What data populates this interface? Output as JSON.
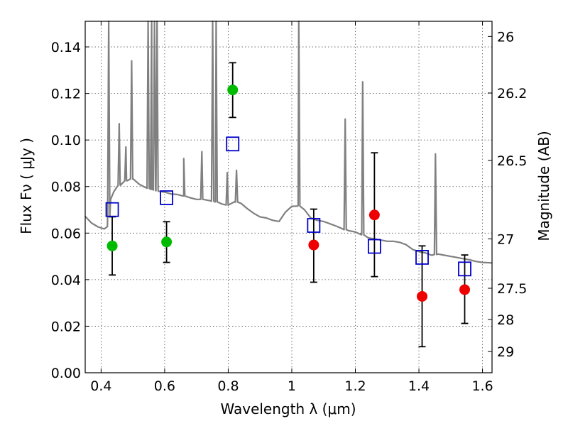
{
  "chart_data": {
    "type": "scatter",
    "title": "",
    "xlabel": "Wavelength  λ (μm)",
    "ylabel": "Flux  Fν  ( μJy )",
    "ylabel_right": "Magnitude (AB)",
    "xlim": [
      0.35,
      1.63
    ],
    "ylim": [
      0.0,
      0.151
    ],
    "grid": true,
    "x_ticks": [
      0.4,
      0.6,
      0.8,
      1.0,
      1.2,
      1.4,
      1.6
    ],
    "x_tick_labels": [
      "0.4",
      "0.6",
      "0.8",
      "1",
      "1.2",
      "1.4",
      "1.6"
    ],
    "y_ticks": [
      0.0,
      0.02,
      0.04,
      0.06,
      0.08,
      0.1,
      0.12,
      0.14
    ],
    "y_tick_labels": [
      "0.00",
      "0.02",
      "0.04",
      "0.06",
      "0.08",
      "0.10",
      "0.12",
      "0.14"
    ],
    "right_ticks": [
      {
        "label": "26",
        "flux": 0.1445
      },
      {
        "label": "26.2",
        "flux": 0.1202
      },
      {
        "label": "26.5",
        "flux": 0.0912
      },
      {
        "label": "27",
        "flux": 0.0575
      },
      {
        "label": "27.5",
        "flux": 0.0363
      },
      {
        "label": "28",
        "flux": 0.0229
      },
      {
        "label": "29",
        "flux": 0.0091
      }
    ],
    "series": [
      {
        "marker": "circle",
        "color": "#00bb00",
        "points": [
          {
            "x": 0.435,
            "y": 0.0545
          },
          {
            "x": 0.606,
            "y": 0.0562
          },
          {
            "x": 0.814,
            "y": 0.1215,
            "yerr": [
              0.1097,
              0.1332
            ]
          }
        ]
      },
      {
        "marker": "circle",
        "color": "#ee0000",
        "points": [
          {
            "x": 1.069,
            "y": 0.0549,
            "yerr": [
              0.0389,
              0.0703
            ]
          },
          {
            "x": 1.26,
            "y": 0.0678,
            "yerr": [
              0.0413,
              0.0945
            ]
          },
          {
            "x": 1.41,
            "y": 0.0328,
            "yerr": [
              0.0112,
              0.0545
            ]
          },
          {
            "x": 1.544,
            "y": 0.0357,
            "yerr": [
              0.0212,
              0.0506
            ]
          }
        ]
      },
      {
        "marker": "square",
        "color": "#0000cc",
        "points": [
          {
            "x": 0.435,
            "y": 0.0701
          },
          {
            "x": 0.606,
            "y": 0.0752
          },
          {
            "x": 0.814,
            "y": 0.0983
          },
          {
            "x": 1.069,
            "y": 0.0633
          },
          {
            "x": 1.26,
            "y": 0.0543
          },
          {
            "x": 1.41,
            "y": 0.0496
          },
          {
            "x": 1.544,
            "y": 0.0446
          }
        ]
      }
    ],
    "error_bars_only": [
      {
        "x": 0.435,
        "yerr": [
          0.042,
          0.067
        ]
      },
      {
        "x": 0.606,
        "yerr": [
          0.0474,
          0.0649
        ]
      }
    ],
    "model_spectrum": {
      "color": "#808080",
      "points": [
        [
          0.35,
          0.0672
        ],
        [
          0.37,
          0.0643
        ],
        [
          0.39,
          0.0627
        ],
        [
          0.41,
          0.0618
        ],
        [
          0.42,
          0.0628
        ],
        [
          0.43,
          0.0745
        ],
        [
          0.44,
          0.0778
        ],
        [
          0.46,
          0.081
        ],
        [
          0.48,
          0.0826
        ],
        [
          0.5,
          0.0834
        ],
        [
          0.52,
          0.081
        ],
        [
          0.54,
          0.0796
        ],
        [
          0.56,
          0.0788
        ],
        [
          0.58,
          0.078
        ],
        [
          0.6,
          0.0776
        ],
        [
          0.62,
          0.0768
        ],
        [
          0.64,
          0.0766
        ],
        [
          0.66,
          0.076
        ],
        [
          0.68,
          0.0752
        ],
        [
          0.7,
          0.0745
        ],
        [
          0.72,
          0.0745
        ],
        [
          0.74,
          0.074
        ],
        [
          0.76,
          0.0735
        ],
        [
          0.78,
          0.0725
        ],
        [
          0.8,
          0.072
        ],
        [
          0.82,
          0.0735
        ],
        [
          0.84,
          0.0728
        ],
        [
          0.86,
          0.0705
        ],
        [
          0.88,
          0.0685
        ],
        [
          0.9,
          0.067
        ],
        [
          0.92,
          0.0665
        ],
        [
          0.94,
          0.0655
        ],
        [
          0.96,
          0.065
        ],
        [
          0.98,
          0.069
        ],
        [
          1.0,
          0.0715
        ],
        [
          1.02,
          0.0718
        ],
        [
          1.04,
          0.07
        ],
        [
          1.06,
          0.0665
        ],
        [
          1.08,
          0.0655
        ],
        [
          1.1,
          0.065
        ],
        [
          1.12,
          0.064
        ],
        [
          1.14,
          0.063
        ],
        [
          1.16,
          0.0618
        ],
        [
          1.18,
          0.061
        ],
        [
          1.2,
          0.0605
        ],
        [
          1.22,
          0.0595
        ],
        [
          1.24,
          0.058
        ],
        [
          1.26,
          0.0575
        ],
        [
          1.28,
          0.057
        ],
        [
          1.3,
          0.0565
        ],
        [
          1.32,
          0.0565
        ],
        [
          1.34,
          0.056
        ],
        [
          1.36,
          0.055
        ],
        [
          1.38,
          0.053
        ],
        [
          1.4,
          0.052
        ],
        [
          1.42,
          0.0515
        ],
        [
          1.44,
          0.0505
        ],
        [
          1.46,
          0.051
        ],
        [
          1.48,
          0.0505
        ],
        [
          1.5,
          0.05
        ],
        [
          1.52,
          0.0495
        ],
        [
          1.54,
          0.049
        ],
        [
          1.56,
          0.0485
        ],
        [
          1.58,
          0.0478
        ],
        [
          1.6,
          0.0474
        ],
        [
          1.63,
          0.0472
        ]
      ],
      "lines": [
        {
          "x": 0.424,
          "peak": 0.151
        },
        {
          "x": 0.457,
          "peak": 0.107
        },
        {
          "x": 0.478,
          "peak": 0.097
        },
        {
          "x": 0.496,
          "peak": 0.134
        },
        {
          "x": 0.548,
          "peak": 0.151
        },
        {
          "x": 0.559,
          "peak": 0.151
        },
        {
          "x": 0.568,
          "peak": 0.151
        },
        {
          "x": 0.576,
          "peak": 0.151
        },
        {
          "x": 0.66,
          "peak": 0.092
        },
        {
          "x": 0.717,
          "peak": 0.095
        },
        {
          "x": 0.751,
          "peak": 0.151
        },
        {
          "x": 0.762,
          "peak": 0.151
        },
        {
          "x": 0.797,
          "peak": 0.086
        },
        {
          "x": 0.826,
          "peak": 0.087
        },
        {
          "x": 1.022,
          "peak": 0.151
        },
        {
          "x": 1.168,
          "peak": 0.109
        },
        {
          "x": 1.223,
          "peak": 0.125
        },
        {
          "x": 1.452,
          "peak": 0.094
        }
      ]
    }
  }
}
